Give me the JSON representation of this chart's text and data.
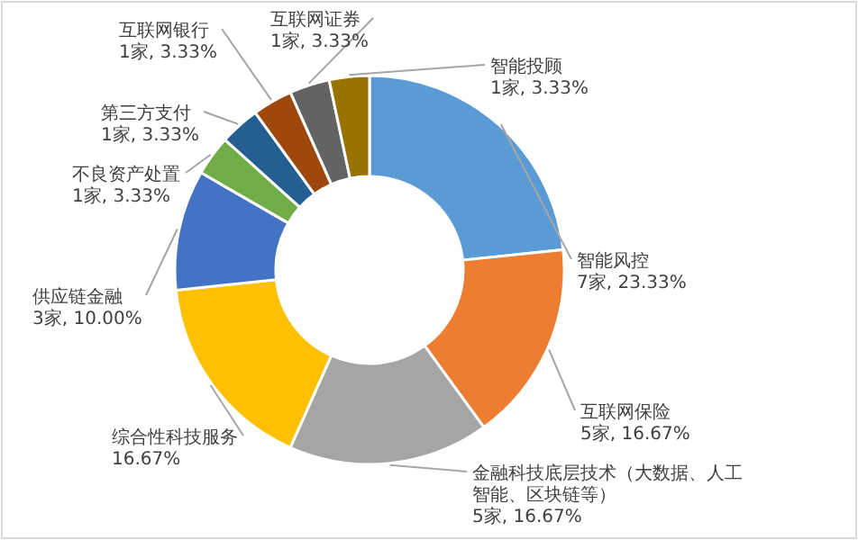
{
  "chart_data": {
    "type": "donut",
    "categories": [
      "智能风控",
      "互联网保险",
      "金融科技底层技术（大数据、人工智能、区块链等）",
      "综合性科技服务",
      "供应链金融",
      "不良资产处置",
      "第三方支付",
      "互联网银行",
      "互联网证券",
      "智能投顾"
    ],
    "values": [
      23.33,
      16.67,
      16.67,
      16.67,
      10,
      3.33,
      3.33,
      3.33,
      3.33,
      3.33
    ],
    "value_labels": [
      "7家, 23.33%",
      "5家, 16.67%",
      "5家, 16.67%",
      "16.67%",
      "3家, 10.00%",
      "1家, 3.33%",
      "1家, 3.33%",
      "1家, 3.33%",
      "1家, 3.33%",
      "1家, 3.33%"
    ],
    "colors": [
      "#5b9bd5",
      "#ed7d31",
      "#a5a5a5",
      "#ffc000",
      "#4472c4",
      "#70ad47",
      "#255e91",
      "#9e480e",
      "#636363",
      "#997300"
    ]
  }
}
